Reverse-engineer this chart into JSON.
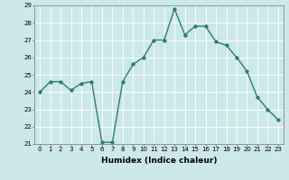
{
  "x": [
    0,
    1,
    2,
    3,
    4,
    5,
    6,
    7,
    8,
    9,
    10,
    11,
    12,
    13,
    14,
    15,
    16,
    17,
    18,
    19,
    20,
    21,
    22,
    23
  ],
  "y": [
    24.0,
    24.6,
    24.6,
    24.1,
    24.5,
    24.6,
    21.1,
    21.1,
    24.6,
    25.6,
    26.0,
    27.0,
    27.0,
    28.8,
    27.3,
    27.8,
    27.8,
    26.9,
    26.7,
    26.0,
    25.2,
    23.7,
    23.0,
    22.4
  ],
  "ylim": [
    21,
    29
  ],
  "xlim": [
    -0.5,
    23.5
  ],
  "yticks": [
    21,
    22,
    23,
    24,
    25,
    26,
    27,
    28,
    29
  ],
  "xticks": [
    0,
    1,
    2,
    3,
    4,
    5,
    6,
    7,
    8,
    9,
    10,
    11,
    12,
    13,
    14,
    15,
    16,
    17,
    18,
    19,
    20,
    21,
    22,
    23
  ],
  "xlabel": "Humidex (Indice chaleur)",
  "line_color": "#2e7d6e",
  "marker": "D",
  "marker_size": 1.8,
  "bg_color": "#cce8e8",
  "grid_color": "#ffffff",
  "axis_color": "#888888",
  "tick_fontsize": 5.0,
  "xlabel_fontsize": 6.5,
  "linewidth": 1.0
}
